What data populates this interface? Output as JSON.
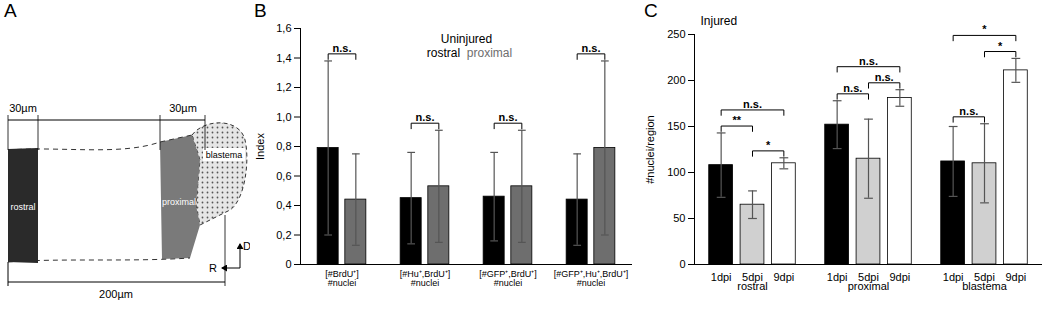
{
  "diagram": {
    "panel": "A",
    "labels": {
      "left_width": "30µm",
      "right_width": "30µm",
      "rostral": "rostral",
      "proximal": "proximal",
      "blastema": "blastema",
      "total_length": "200µm",
      "dorsal": "D",
      "rostral_axis": "R"
    }
  },
  "chart_data": [
    {
      "panel": "B",
      "type": "bar",
      "title": "Uninjured",
      "y_label": "Index",
      "categories": [
        "[#BrdU⁺]\n#nuclei",
        "[#Hu⁺,BrdU⁺]\n#nuclei",
        "[#GFP⁺,BrdU⁺]\n#nuclei",
        "[#GFP⁺,Hu⁺,BrdU⁺]\n#nuclei"
      ],
      "series": [
        {
          "name": "rostral",
          "color": "#000000",
          "values": [
            0.79,
            0.45,
            0.46,
            0.44
          ],
          "errors": [
            0.59,
            0.31,
            0.3,
            0.31
          ]
        },
        {
          "name": "proximal",
          "color": "#6e6e6e",
          "values": [
            0.44,
            0.53,
            0.53,
            0.79
          ],
          "errors": [
            0.31,
            0.38,
            0.38,
            0.59
          ]
        }
      ],
      "ylim": [
        0,
        1.6
      ],
      "yticks": [
        0,
        {
          "value": 0.2,
          "label": "0,2"
        },
        {
          "value": 0.4,
          "label": "0,4"
        },
        {
          "value": 0.6,
          "label": "0,6"
        },
        {
          "value": 0.8,
          "label": "0,8"
        },
        {
          "value": 1,
          "label": "1,0"
        },
        {
          "value": 1.2,
          "label": "1,2"
        },
        {
          "value": 1.4,
          "label": "1,4"
        },
        {
          "value": 1.6,
          "label": "1,6"
        }
      ],
      "legend": "top",
      "tick_labels": "y",
      "significance": [
        {
          "category": "[#BrdU⁺]\n#nuclei",
          "pair": [
            "rostral",
            "proximal"
          ],
          "label": "n.s."
        },
        {
          "category": "[#Hu⁺,BrdU⁺]\n#nuclei",
          "pair": [
            "rostral",
            "proximal"
          ],
          "label": "n.s."
        },
        {
          "category": "[#GFP⁺,BrdU⁺]\n#nuclei",
          "pair": [
            "rostral",
            "proximal"
          ],
          "label": "n.s."
        },
        {
          "category": "[#GFP⁺,Hu⁺,BrdU⁺]\n#nuclei",
          "pair": [
            "rostral",
            "proximal"
          ],
          "label": "n.s."
        }
      ]
    },
    {
      "panel": "C",
      "type": "bar",
      "title": "Injured",
      "y_label": "#nuclei/region",
      "categories": [
        "rostral",
        "proximal",
        "blastema"
      ],
      "series": [
        {
          "name": "1dpi",
          "color": "#000000",
          "values": [
            108,
            152,
            112
          ],
          "errors": [
            35,
            26,
            38
          ]
        },
        {
          "name": "5dpi",
          "color": "#d0d0d0",
          "values": [
            65,
            115,
            110
          ],
          "errors": [
            15,
            43,
            43
          ]
        },
        {
          "name": "9dpi",
          "color": "#ffffff",
          "values": [
            110,
            181,
            211
          ],
          "errors": [
            6,
            9,
            13
          ]
        }
      ],
      "ylim": [
        0,
        250
      ],
      "yticks": [
        0,
        50,
        100,
        150,
        200,
        250
      ],
      "significance": [
        {
          "category": "rostral",
          "pair": [
            "1dpi",
            "5dpi"
          ],
          "label": "**"
        },
        {
          "category": "rostral",
          "pair": [
            "5dpi",
            "9dpi"
          ],
          "label": "*"
        },
        {
          "category": "rostral",
          "pair": [
            "1dpi",
            "9dpi"
          ],
          "label": "n.s."
        },
        {
          "category": "proximal",
          "pair": [
            "1dpi",
            "5dpi"
          ],
          "label": "n.s."
        },
        {
          "category": "proximal",
          "pair": [
            "5dpi",
            "9dpi"
          ],
          "label": "n.s."
        },
        {
          "category": "proximal",
          "pair": [
            "1dpi",
            "9dpi"
          ],
          "label": "n.s."
        },
        {
          "category": "blastema",
          "pair": [
            "1dpi",
            "5dpi"
          ],
          "label": "n.s."
        },
        {
          "category": "blastema",
          "pair": [
            "5dpi",
            "9dpi"
          ],
          "label": "*"
        },
        {
          "category": "blastema",
          "pair": [
            "1dpi",
            "9dpi"
          ],
          "label": "*"
        }
      ]
    }
  ]
}
